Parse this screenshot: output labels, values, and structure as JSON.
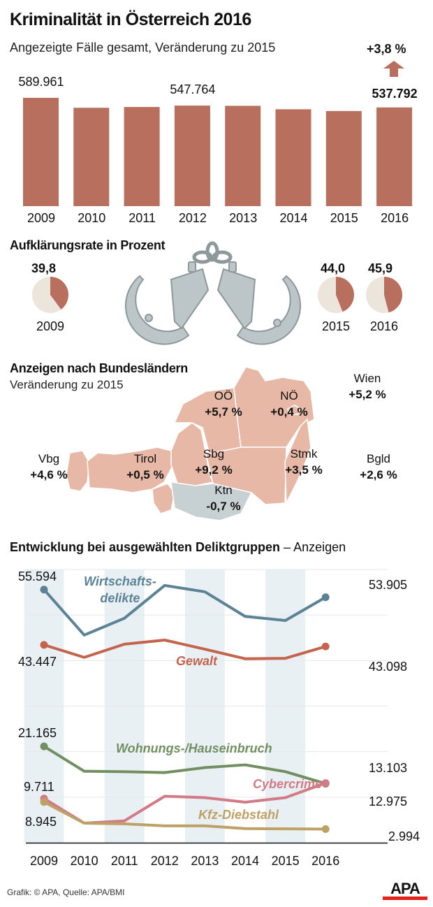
{
  "header": {
    "title": "Kriminalität in Österreich 2016",
    "subtitle": "Angezeigte Fälle gesamt, Veränderung zu 2015",
    "change": "+3,8 %"
  },
  "colors": {
    "bar": "#b86f5d",
    "pie_rest": "#ece5dc",
    "map_up": "#e7b8a5",
    "map_down": "#c7d0d3",
    "band": "#e9f0f4",
    "wirtschaft": "#5b8395",
    "gewalt": "#c4644e",
    "wohnung": "#718f60",
    "cyber": "#d27b86",
    "kfz": "#bea166"
  },
  "chart_data": [
    {
      "type": "bar",
      "title": "Angezeigte Fälle gesamt, Veränderung zu 2015",
      "categories": [
        "2009",
        "2010",
        "2011",
        "2012",
        "2013",
        "2014",
        "2015",
        "2016"
      ],
      "values": [
        589961,
        535700,
        540000,
        547764,
        546400,
        527700,
        518100,
        537792
      ],
      "labels": {
        "2009": "589.961",
        "2012": "547.764",
        "2016": "537.792"
      },
      "annotation": "+3,8 %"
    },
    {
      "type": "pie",
      "title": "Aufklärungsrate in Prozent",
      "categories": [
        "2009",
        "2015",
        "2016"
      ],
      "values": [
        39.8,
        44.0,
        45.9
      ],
      "labels": [
        "39,8",
        "44,0",
        "45,9"
      ]
    },
    {
      "type": "table",
      "title": "Anzeigen nach Bundesländern",
      "subtitle": "Veränderung zu 2015",
      "regions": [
        {
          "name": "Vbg",
          "change": "+4,6 %"
        },
        {
          "name": "Tirol",
          "change": "+0,5 %"
        },
        {
          "name": "Sbg",
          "change": "+9,2 %"
        },
        {
          "name": "OÖ",
          "change": "+5,7 %"
        },
        {
          "name": "NÖ",
          "change": "+0,4 %"
        },
        {
          "name": "Wien",
          "change": "+5,2 %"
        },
        {
          "name": "Stmk",
          "change": "+3,5 %"
        },
        {
          "name": "Ktn",
          "change": "-0,7 %"
        },
        {
          "name": "Bgld",
          "change": "+2,6 %"
        }
      ]
    },
    {
      "type": "line",
      "title": "Entwicklung bei ausgewählten Deliktgruppen",
      "title_suffix": "– Anzeigen",
      "x": [
        "2009",
        "2010",
        "2011",
        "2012",
        "2013",
        "2014",
        "2015",
        "2016"
      ],
      "ylim": [
        0,
        60000
      ],
      "grid": true,
      "series": [
        {
          "name": "Wirtschafts-delikte",
          "name_lines": [
            "Wirtschafts-",
            "delikte"
          ],
          "color_key": "wirtschaft",
          "values": [
            55594,
            45600,
            49300,
            56500,
            55100,
            49700,
            48800,
            53905
          ],
          "start_label": "55.594",
          "end_label": "53.905"
        },
        {
          "name": "Gewalt",
          "color_key": "gewalt",
          "values": [
            43447,
            40700,
            43600,
            44500,
            42500,
            40400,
            40500,
            43098
          ],
          "start_label": "43.447",
          "end_label": "43.098"
        },
        {
          "name": "Wohnungs-/Hauseinbruch",
          "color_key": "wohnung",
          "values": [
            21165,
            15700,
            15600,
            15400,
            16500,
            17100,
            15600,
            12975
          ],
          "start_label": "21.165",
          "end_label": "12.975"
        },
        {
          "name": "Cybercrime",
          "color_key": "cyber",
          "values": [
            9711,
            4300,
            4800,
            10200,
            9900,
            8900,
            9900,
            13103
          ],
          "start_label": "9.711",
          "end_label": "13.103"
        },
        {
          "name": "Kfz-Diebstahl",
          "color_key": "kfz",
          "values": [
            8945,
            4300,
            4150,
            3700,
            3700,
            3100,
            3050,
            2994
          ],
          "start_label": "8.945",
          "end_label": "2.994"
        }
      ]
    }
  ],
  "footer": {
    "credit": "Grafik: © APA, Quelle: APA/BMI",
    "logo": "APA"
  }
}
